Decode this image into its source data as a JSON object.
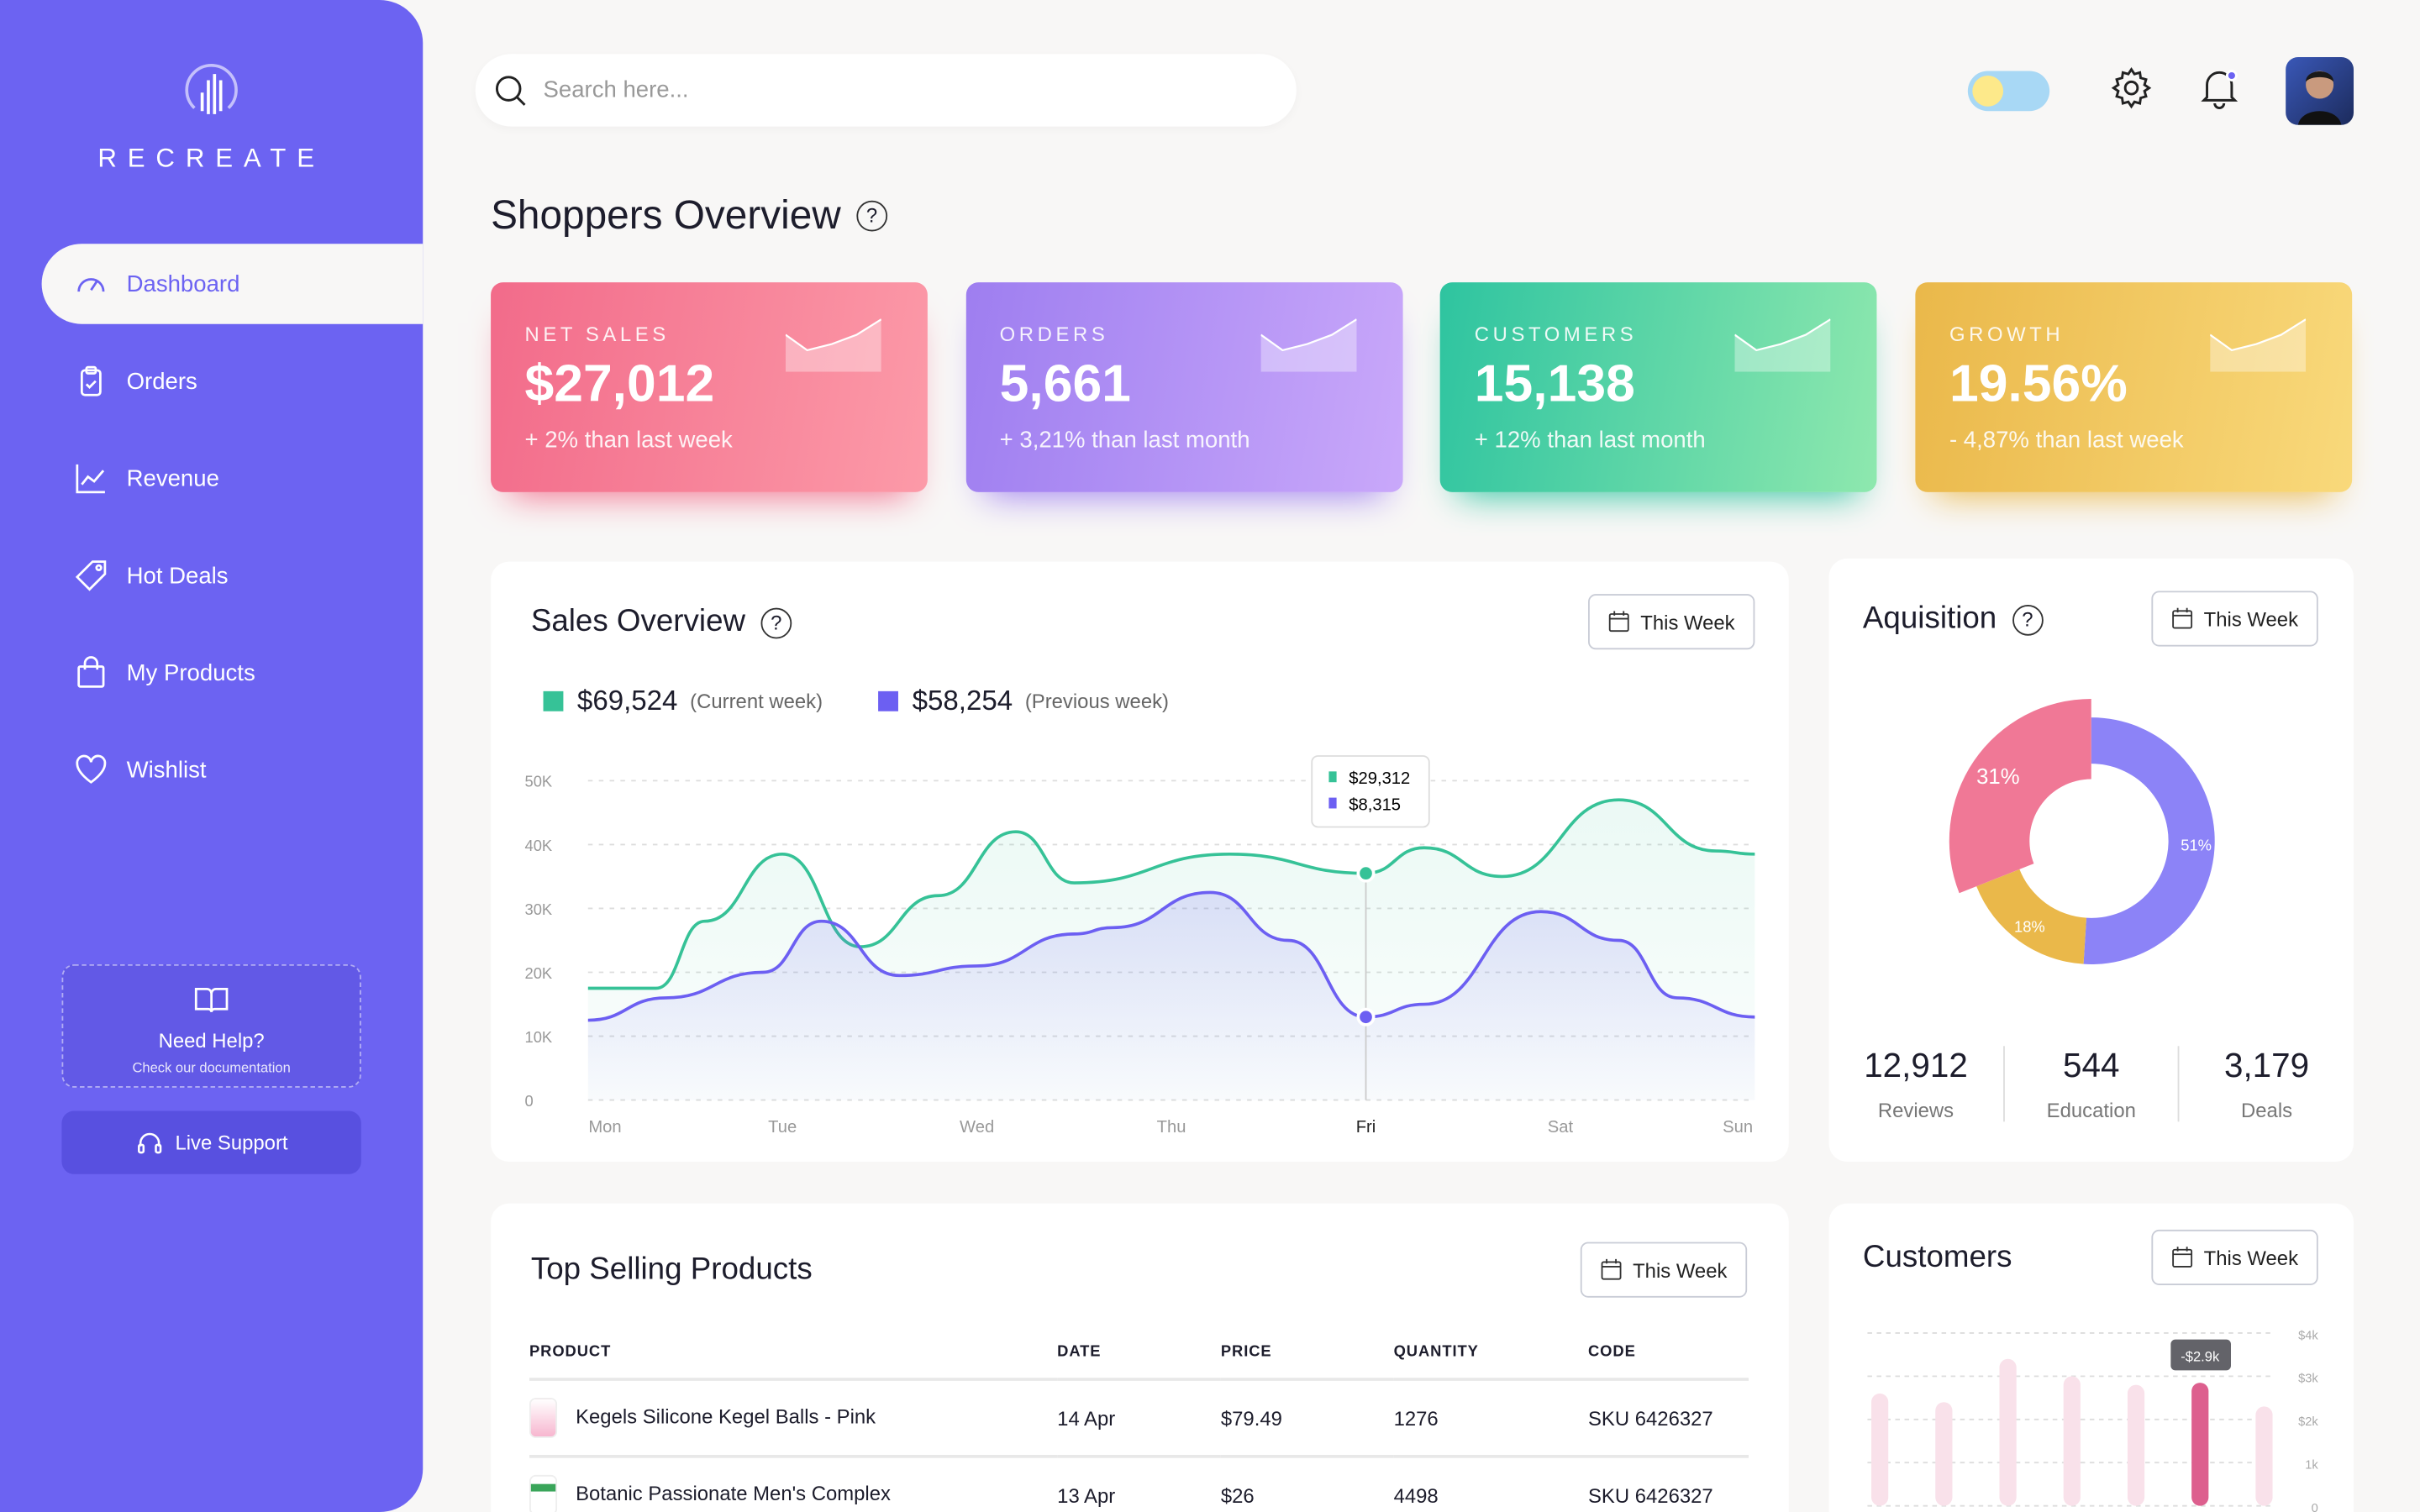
{
  "brand": {
    "name": "RECREATE"
  },
  "sidebar": {
    "items": [
      {
        "label": "Dashboard",
        "icon": "gauge-icon",
        "active": true
      },
      {
        "label": "Orders",
        "icon": "clipboard-icon"
      },
      {
        "label": "Revenue",
        "icon": "line-chart-icon"
      },
      {
        "label": "Hot Deals",
        "icon": "tag-icon"
      },
      {
        "label": "My Products",
        "icon": "shopping-bag-icon"
      },
      {
        "label": "Wishlist",
        "icon": "heart-icon"
      }
    ],
    "help": {
      "title": "Need Help?",
      "subtitle": "Check our documentation"
    },
    "live_support": "Live Support"
  },
  "search": {
    "placeholder": "Search here..."
  },
  "page_title": "Shoppers Overview",
  "stats": [
    {
      "label": "NET SALES",
      "value": "$27,012",
      "change": "+ 2% than last week",
      "from": "#f26b8a",
      "to": "#fc9aa8"
    },
    {
      "label": "ORDERS",
      "value": "5,661",
      "change": "+ 3,21% than last month",
      "from": "#9e7ef0",
      "to": "#c9a8fa"
    },
    {
      "label": "CUSTOMERS",
      "value": "15,138",
      "change": "+ 12% than last month",
      "from": "#2ec4a0",
      "to": "#8ee8ae"
    },
    {
      "label": "GROWTH",
      "value": "19.56%",
      "change": "- 4,87% than last week",
      "from": "#eab84a",
      "to": "#f9d97b"
    }
  ],
  "sales": {
    "title": "Sales Overview",
    "period": "This Week",
    "current": {
      "value": "$69,524",
      "label": "(Current week)"
    },
    "previous": {
      "value": "$58,254",
      "label": "(Previous week)"
    },
    "tooltip": [
      "$29,312",
      "$8,315"
    ]
  },
  "chart_data": [
    {
      "type": "area",
      "categories": [
        "Mon",
        "Tue",
        "Wed",
        "Thu",
        "Fri",
        "Sat",
        "Sun"
      ],
      "yticks": [
        "0",
        "10K",
        "20K",
        "30K",
        "40K",
        "50K"
      ],
      "ylim": [
        0,
        50000
      ],
      "grid": true,
      "highlight": "Fri",
      "series": [
        {
          "color": "#36c297",
          "x": [
            0,
            0.35,
            0.6,
            1,
            1.4,
            1.8,
            2.2,
            2.5,
            3.3,
            4,
            4.3,
            4.7,
            5.3,
            5.8,
            6
          ],
          "values": [
            17500,
            17500,
            28000,
            38500,
            24000,
            32000,
            42000,
            34000,
            38500,
            35500,
            39500,
            35000,
            47000,
            39000,
            38500
          ]
        },
        {
          "color": "#6c5ff2",
          "x": [
            0,
            0.4,
            0.9,
            1.2,
            1.6,
            2,
            2.5,
            2.7,
            3.2,
            3.6,
            4,
            4.3,
            4.9,
            5.3,
            5.6,
            6
          ],
          "values": [
            12500,
            16000,
            20000,
            28000,
            19500,
            21000,
            26000,
            27000,
            32500,
            25000,
            13000,
            15000,
            29500,
            25000,
            16000,
            13000
          ]
        }
      ]
    },
    {
      "type": "pie",
      "title": "Aquisition",
      "slices": [
        {
          "value": 51,
          "label": "51%",
          "color": "#8c83f7"
        },
        {
          "value": 18,
          "label": "18%",
          "color": "#eab84a"
        },
        {
          "value": 31,
          "label": "31%",
          "color": "#f07896"
        }
      ]
    },
    {
      "type": "bar",
      "title": "Customers",
      "yticks": [
        "0",
        "1k",
        "$2k",
        "$3k",
        "$4k"
      ],
      "ylim": [
        0,
        4000
      ],
      "values": [
        2600,
        2400,
        3400,
        3000,
        2800,
        2850,
        2300
      ],
      "highlight_index": 5,
      "tooltip": "-$2.9k",
      "color": "#f9e1ea",
      "highlight_color": "#dd5f8e"
    }
  ],
  "acquisition": {
    "title": "Aquisition",
    "period": "This Week",
    "stats": [
      {
        "n": "12,912",
        "k": "Reviews"
      },
      {
        "n": "544",
        "k": "Education"
      },
      {
        "n": "3,179",
        "k": "Deals"
      }
    ]
  },
  "products": {
    "title": "Top Selling Products",
    "period": "This Week",
    "columns": [
      "PRODUCT",
      "DATE",
      "PRICE",
      "QUANTITY",
      "CODE"
    ],
    "rows": [
      [
        "Kegels Silicone Kegel Balls - Pink",
        "14 Apr",
        "$79.49",
        "1276",
        "SKU 6426327"
      ],
      [
        "Botanic Passionate Men's Complex",
        "13 Apr",
        "$26",
        "4498",
        "SKU 6426327"
      ]
    ]
  },
  "customers": {
    "title": "Customers",
    "period": "This Week"
  }
}
